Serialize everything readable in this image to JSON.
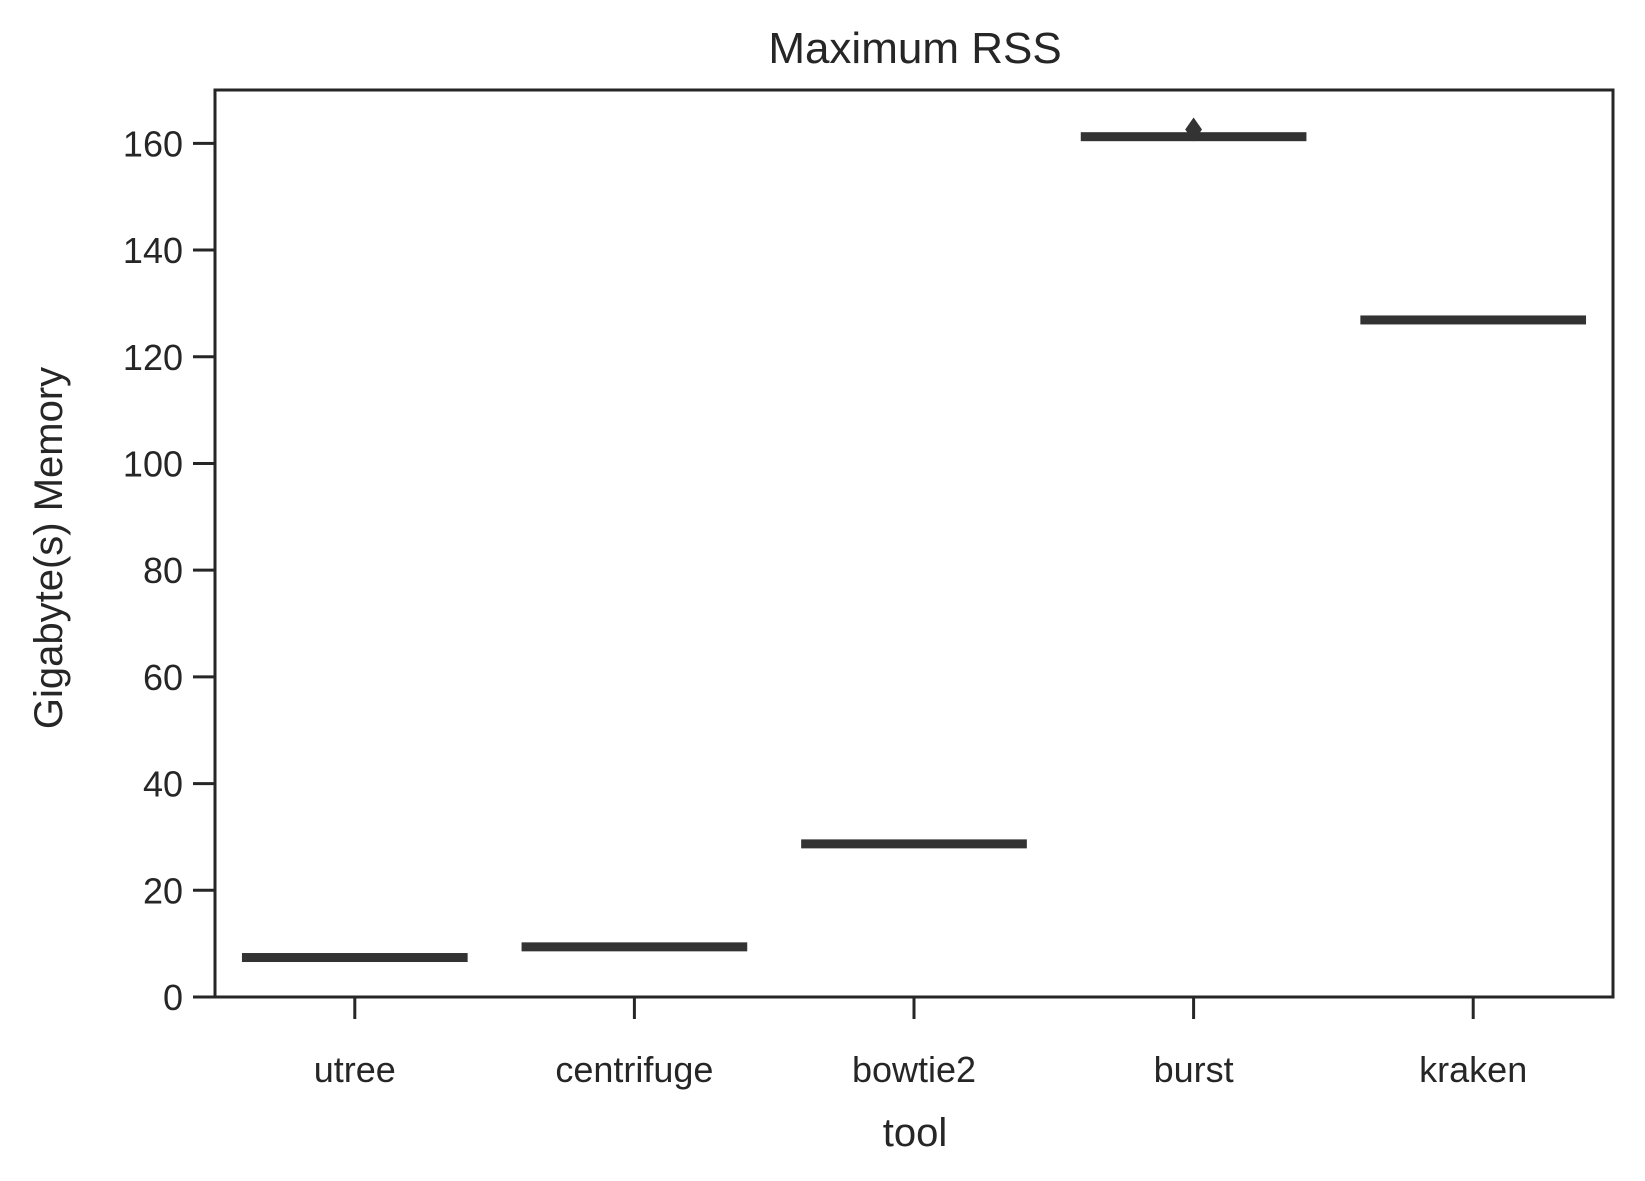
{
  "chart_data": {
    "type": "box",
    "title": "Maximum RSS",
    "xlabel": "tool",
    "ylabel": "Gigabyte(s) Memory",
    "categories": [
      "utree",
      "centrifuge",
      "bowtie2",
      "burst",
      "kraken"
    ],
    "boxes": [
      {
        "category": "utree",
        "min": 7.2,
        "q1": 7.2,
        "median": 7.4,
        "q3": 7.6,
        "max": 7.6,
        "outliers": []
      },
      {
        "category": "centrifuge",
        "min": 9.0,
        "q1": 9.0,
        "median": 9.4,
        "q3": 9.8,
        "max": 9.8,
        "outliers": []
      },
      {
        "category": "bowtie2",
        "min": 28.5,
        "q1": 28.5,
        "median": 28.7,
        "q3": 28.9,
        "max": 28.9,
        "outliers": []
      },
      {
        "category": "burst",
        "min": 161.0,
        "q1": 161.0,
        "median": 161.2,
        "q3": 161.5,
        "max": 161.5,
        "outliers": [
          162.6
        ]
      },
      {
        "category": "kraken",
        "min": 126.8,
        "q1": 126.8,
        "median": 126.9,
        "q3": 127.0,
        "max": 127.0,
        "outliers": []
      }
    ],
    "ylim": [
      0,
      170
    ],
    "yticks": [
      0,
      20,
      40,
      60,
      80,
      100,
      120,
      140,
      160
    ],
    "grid": false,
    "legend": "none",
    "colors": {
      "box": "#333333",
      "axis": "#262626"
    }
  }
}
